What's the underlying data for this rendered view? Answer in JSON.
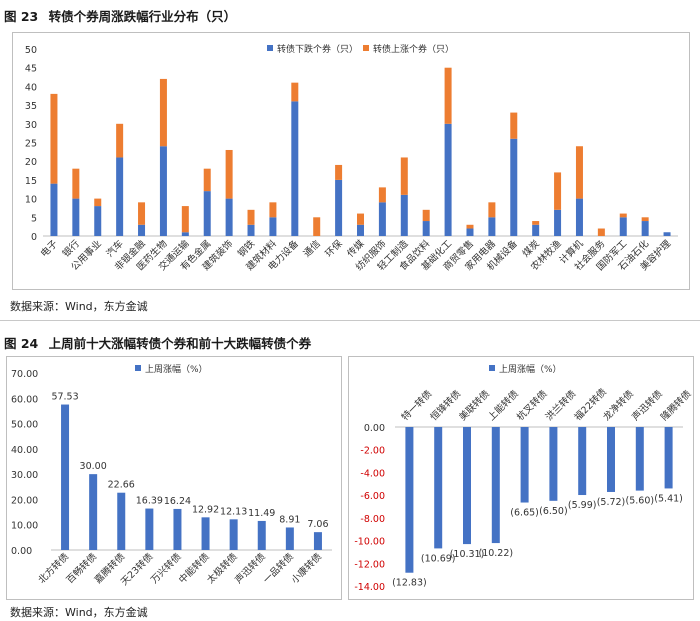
{
  "fig23": {
    "title_num": "图 23",
    "title_text": "转债个券周涨跌幅行业分布（只）",
    "source": "数据来源：Wind，东方金诚"
  },
  "fig24": {
    "title_num": "图 24",
    "title_text": "上周前十大涨幅转债个券和前十大跌幅转债个券",
    "source": "数据来源：Wind，东方金诚"
  },
  "chart_data": [
    {
      "type": "bar",
      "stacked": true,
      "title": "转债个券周涨跌幅行业分布（只）",
      "categories": [
        "电子",
        "银行",
        "公用事业",
        "汽车",
        "非银金融",
        "医药生物",
        "交通运输",
        "有色金属",
        "建筑装饰",
        "钢铁",
        "建筑材料",
        "电力设备",
        "通信",
        "环保",
        "传媒",
        "纺织服饰",
        "轻工制造",
        "食品饮料",
        "基础化工",
        "商贸零售",
        "家用电器",
        "机械设备",
        "煤炭",
        "农林牧渔",
        "计算机",
        "社会服务",
        "国防军工",
        "石油石化",
        "美容护理"
      ],
      "series": [
        {
          "name": "转债下跌个券（只）",
          "color": "#4472C4",
          "values": [
            14,
            10,
            8,
            21,
            3,
            24,
            1,
            12,
            10,
            3,
            5,
            36,
            0,
            15,
            3,
            9,
            11,
            4,
            30,
            2,
            5,
            26,
            3,
            7,
            10,
            0,
            5,
            4,
            1
          ]
        },
        {
          "name": "转债上涨个券（只）",
          "color": "#ED7D31",
          "values": [
            24,
            8,
            2,
            9,
            6,
            18,
            7,
            6,
            13,
            4,
            4,
            5,
            5,
            4,
            3,
            4,
            10,
            3,
            15,
            1,
            4,
            7,
            1,
            10,
            14,
            2,
            1,
            1,
            0
          ]
        }
      ],
      "ylim": [
        0,
        50
      ],
      "yticks": [
        0,
        5,
        10,
        15,
        20,
        25,
        30,
        35,
        40,
        45,
        50
      ],
      "legend": "top-right"
    },
    {
      "type": "bar",
      "title": "上周前十大涨幅转债个券",
      "series_name": "上周涨幅（%）",
      "color": "#4472C4",
      "categories": [
        "北方转债",
        "百畅转债",
        "嘉腾转债",
        "天23转债",
        "万兴转债",
        "中能转债",
        "太极转债",
        "声迅转债",
        "一品转债",
        "小康转债"
      ],
      "values": [
        57.53,
        30.0,
        22.66,
        16.39,
        16.24,
        12.92,
        12.13,
        11.49,
        8.91,
        7.06
      ],
      "value_labels": [
        "57.53",
        "30.00",
        "22.66",
        "16.39",
        "16.24",
        "12.92",
        "12.13",
        "11.49",
        "8.91",
        "7.06"
      ],
      "ylim": [
        0,
        70
      ],
      "yticks": [
        "0.00",
        "10.00",
        "20.00",
        "30.00",
        "40.00",
        "50.00",
        "60.00",
        "70.00"
      ],
      "legend": "top"
    },
    {
      "type": "bar",
      "title": "上周前十大跌幅转债个券",
      "series_name": "上周涨幅（%）",
      "color": "#4472C4",
      "categories": [
        "特一转债",
        "恒锋转债",
        "美联转债",
        "上能转债",
        "杭叉转债",
        "洪兰转债",
        "福22转债",
        "龙净转债",
        "声迅转债",
        "隆腾转债"
      ],
      "values": [
        -12.83,
        -10.69,
        -10.31,
        -10.22,
        -6.65,
        -6.5,
        -5.99,
        -5.72,
        -5.6,
        -5.41
      ],
      "value_labels": [
        "(12.83)",
        "(10.69)",
        "(10.31)",
        "(10.22)",
        "(6.65)",
        "(6.50)",
        "(5.99)",
        "(5.72)",
        "(5.60)",
        "(5.41)"
      ],
      "ylim": [
        -14,
        0
      ],
      "yticks": [
        "0.00",
        "-2.00",
        "-4.00",
        "-6.00",
        "-8.00",
        "-10.00",
        "-12.00",
        "-14.00"
      ],
      "legend": "top"
    }
  ]
}
